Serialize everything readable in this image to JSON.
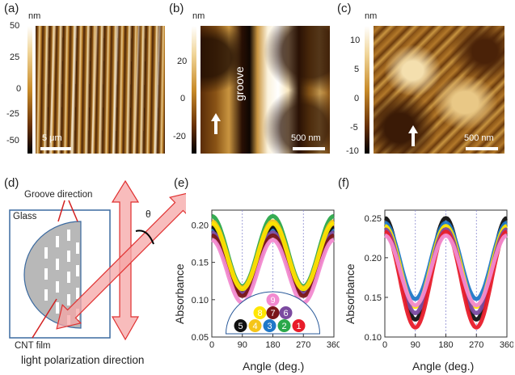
{
  "panels": {
    "a": {
      "label": "(a)",
      "unit": "nm",
      "ticks": [
        "50",
        "25",
        "0",
        "-25",
        "-50"
      ],
      "scale_label": "5 μm"
    },
    "b": {
      "label": "(b)",
      "unit": "nm",
      "ticks": [
        "20",
        "0",
        "-20"
      ],
      "scale_label": "500 nm",
      "annotation": "groove"
    },
    "c": {
      "label": "(c)",
      "unit": "nm",
      "ticks": [
        "10",
        "5",
        "0",
        "-5",
        "-10"
      ],
      "scale_label": "500 nm"
    },
    "d": {
      "label": "(d)",
      "groove_direction": "Groove direction",
      "glass": "Glass",
      "cnt_film": "CNT film",
      "theta": "θ",
      "polarization": "light polarization direction"
    },
    "e": {
      "label": "(e)"
    },
    "f": {
      "label": "(f)"
    }
  },
  "colors": {
    "s1": "#e81c2a",
    "s2": "#2ba84a",
    "s3": "#1f78c8",
    "s4": "#f5c518",
    "s5": "#111111",
    "s6": "#7b4aa0",
    "s7": "#7a1518",
    "s8": "#ffe600",
    "s9": "#f28ad0"
  },
  "chart_data": [
    {
      "type": "line",
      "panel": "(e)",
      "xlabel": "Angle (deg.)",
      "ylabel": "Absorbance",
      "xlim": [
        0,
        360
      ],
      "ylim": [
        0.05,
        0.22
      ],
      "xticks": [
        "0",
        "90",
        "180",
        "270",
        "360"
      ],
      "yticks": [
        "0.05",
        "0.10",
        "0.15",
        "0.20"
      ],
      "legend_numbers": [
        "1",
        "2",
        "3",
        "4",
        "5",
        "6",
        "7",
        "8",
        "9"
      ],
      "series": [
        {
          "name": "1",
          "max": 0.2,
          "min": 0.113
        },
        {
          "name": "2",
          "max": 0.212,
          "min": 0.118
        },
        {
          "name": "3",
          "max": 0.195,
          "min": 0.11
        },
        {
          "name": "4",
          "max": 0.205,
          "min": 0.116
        },
        {
          "name": "5",
          "max": 0.198,
          "min": 0.112
        },
        {
          "name": "6",
          "max": 0.19,
          "min": 0.108
        },
        {
          "name": "7",
          "max": 0.186,
          "min": 0.105
        },
        {
          "name": "8",
          "max": 0.202,
          "min": 0.114
        },
        {
          "name": "9",
          "max": 0.18,
          "min": 0.096
        }
      ]
    },
    {
      "type": "line",
      "panel": "(f)",
      "xlabel": "Angle (deg.)",
      "ylabel": "Absorbance",
      "xlim": [
        0,
        360
      ],
      "ylim": [
        0.1,
        0.26
      ],
      "xticks": [
        "0",
        "90",
        "180",
        "270",
        "360"
      ],
      "yticks": [
        "0.10",
        "0.15",
        "0.20",
        "0.25"
      ],
      "series": [
        {
          "name": "5",
          "max": 0.25,
          "min": 0.122
        },
        {
          "name": "3",
          "max": 0.244,
          "min": 0.148
        },
        {
          "name": "8",
          "max": 0.24,
          "min": 0.138
        },
        {
          "name": "6",
          "max": 0.236,
          "min": 0.13
        },
        {
          "name": "1",
          "max": 0.233,
          "min": 0.112
        },
        {
          "name": "9",
          "max": 0.228,
          "min": 0.14
        }
      ]
    }
  ]
}
